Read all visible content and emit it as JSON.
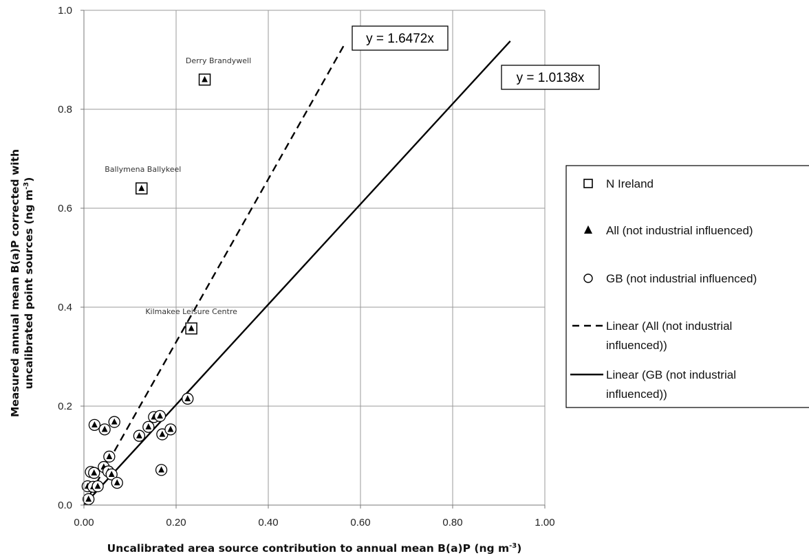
{
  "chart_data": {
    "type": "scatter",
    "xlabel": "Uncalibrated area source contribution to annual mean B(a)P (ng m-3)",
    "ylabel": "Measured annual mean B(a)P corrected with uncalibrated point sources  (ng m-3)",
    "axis_text": {
      "xlabel_main": "Uncalibrated area source contribution to annual mean B(a)P (ng m",
      "xlabel_sup": "-3",
      "xlabel_end": ")",
      "ylabel_line1": "Measured annual mean B(a)P corrected with",
      "ylabel_line2_main": "uncalibrated point sources  (ng m",
      "ylabel_line2_sup": "-3",
      "ylabel_line2_end": ")"
    },
    "xlim": [
      0,
      1.0
    ],
    "ylim": [
      0,
      1.0
    ],
    "x_ticks": [
      "0.00",
      "0.20",
      "0.40",
      "0.60",
      "0.80",
      "1.00"
    ],
    "y_ticks": [
      "0.0",
      "0.2",
      "0.4",
      "0.6",
      "0.8",
      "1.0"
    ],
    "grid": {
      "vertical": true,
      "horizontal": true
    },
    "legend_position": "right",
    "series": [
      {
        "name": "N Ireland",
        "marker": "open-square",
        "points": [
          {
            "x": 0.262,
            "y": 0.86,
            "label": "Derry Brandywell"
          },
          {
            "x": 0.125,
            "y": 0.64,
            "label": "Ballymena Ballykeel"
          },
          {
            "x": 0.233,
            "y": 0.357,
            "label": "Kilmakee Leisure Centre"
          }
        ]
      },
      {
        "name": "All (not industrial influenced)",
        "marker": "filled-triangle",
        "note": "plotted at every site (N Ireland and GB)"
      },
      {
        "name": "GB (not industrial influenced)",
        "marker": "open-circle",
        "points": [
          {
            "x": 0.01,
            "y": 0.012
          },
          {
            "x": 0.008,
            "y": 0.038
          },
          {
            "x": 0.015,
            "y": 0.067
          },
          {
            "x": 0.02,
            "y": 0.037
          },
          {
            "x": 0.022,
            "y": 0.065
          },
          {
            "x": 0.03,
            "y": 0.038
          },
          {
            "x": 0.023,
            "y": 0.162
          },
          {
            "x": 0.045,
            "y": 0.153
          },
          {
            "x": 0.066,
            "y": 0.168
          },
          {
            "x": 0.043,
            "y": 0.077
          },
          {
            "x": 0.055,
            "y": 0.098
          },
          {
            "x": 0.053,
            "y": 0.068
          },
          {
            "x": 0.06,
            "y": 0.062
          },
          {
            "x": 0.072,
            "y": 0.045
          },
          {
            "x": 0.12,
            "y": 0.14
          },
          {
            "x": 0.14,
            "y": 0.158
          },
          {
            "x": 0.152,
            "y": 0.178
          },
          {
            "x": 0.165,
            "y": 0.18
          },
          {
            "x": 0.17,
            "y": 0.143
          },
          {
            "x": 0.188,
            "y": 0.153
          },
          {
            "x": 0.168,
            "y": 0.071
          },
          {
            "x": 0.225,
            "y": 0.215
          }
        ]
      }
    ],
    "trendlines": [
      {
        "name": "Linear (All (not industrial influenced))",
        "style": "dashed",
        "slope": 1.6472,
        "x_range": [
          0.0,
          0.565
        ],
        "equation": "y = 1.6472x"
      },
      {
        "name": "Linear (GB (not industrial influenced))",
        "style": "solid",
        "slope": 1.0138,
        "x_range": [
          0.0,
          0.925
        ],
        "equation": "y = 1.0138x"
      }
    ],
    "legend": [
      {
        "marker": "open-square",
        "label": "N Ireland"
      },
      {
        "marker": "filled-triangle",
        "label": "All (not industrial influenced)"
      },
      {
        "marker": "open-circle",
        "label": "GB (not industrial influenced)"
      },
      {
        "marker": "dashed-line",
        "label_lines": [
          "Linear (All (not industrial",
          "influenced))"
        ]
      },
      {
        "marker": "solid-line",
        "label_lines": [
          "Linear (GB (not industrial",
          "influenced))"
        ]
      }
    ]
  }
}
